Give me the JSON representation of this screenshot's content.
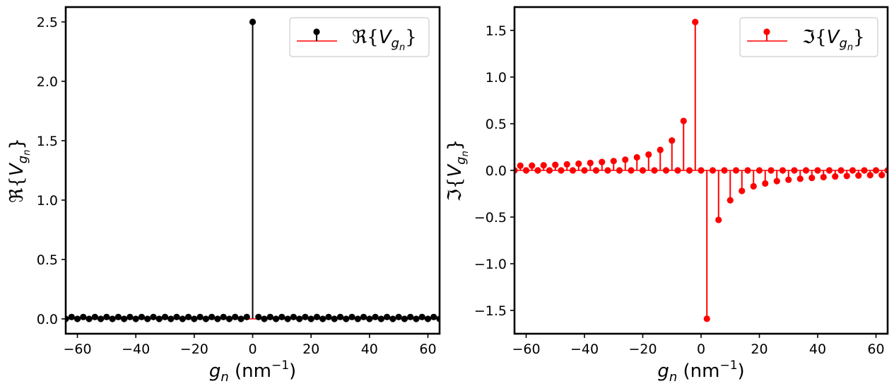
{
  "chart_data": [
    {
      "type": "stem",
      "title": "",
      "xlabel": "g_n (nm⁻¹)",
      "xlabel_main": "g",
      "xlabel_sub": "n",
      "xlabel_unit": " (nm",
      "xlabel_sup": "−1",
      "xlabel_close": ")",
      "ylabel": "ℜ{V_gn}",
      "ylabel_prefix": "ℜ{",
      "ylabel_var": "V",
      "ylabel_sub": "g",
      "ylabel_subsub": "n",
      "ylabel_suffix": "}",
      "legend": {
        "label": "ℜ{V_gn}",
        "prefix": "ℜ{",
        "var": "V",
        "sub": "g",
        "subsub": "n",
        "suffix": "}",
        "location": "top-right"
      },
      "xlim": [
        -64,
        64
      ],
      "ylim": [
        -0.125,
        2.625
      ],
      "xticks": [
        -60,
        -40,
        -20,
        0,
        20,
        40,
        60
      ],
      "xtick_labels": [
        "−60",
        "−40",
        "−20",
        "0",
        "20",
        "40",
        "60"
      ],
      "yticks": [
        0.0,
        0.5,
        1.0,
        1.5,
        2.0,
        2.5
      ],
      "ytick_labels": [
        "0.0",
        "0.5",
        "1.0",
        "1.5",
        "2.0",
        "2.5"
      ],
      "marker_color": "#000000",
      "stem_color": "#000000",
      "baseline_color": "#ff0000",
      "x": [
        -64,
        -62,
        -60,
        -58,
        -56,
        -54,
        -52,
        -50,
        -48,
        -46,
        -44,
        -42,
        -40,
        -38,
        -36,
        -34,
        -32,
        -30,
        -28,
        -26,
        -24,
        -22,
        -20,
        -18,
        -16,
        -14,
        -12,
        -10,
        -8,
        -6,
        -4,
        -2,
        0,
        2,
        4,
        6,
        8,
        10,
        12,
        14,
        16,
        18,
        20,
        22,
        24,
        26,
        28,
        30,
        32,
        34,
        36,
        38,
        40,
        42,
        44,
        46,
        48,
        50,
        52,
        54,
        56,
        58,
        60,
        62,
        64
      ],
      "y": [
        0,
        0.016,
        0,
        0.016,
        0,
        0.016,
        0,
        0.016,
        0,
        0.016,
        0,
        0.016,
        0,
        0.016,
        0,
        0.016,
        0,
        0.016,
        0,
        0.016,
        0,
        0.016,
        0,
        0.016,
        0,
        0.016,
        0,
        0.016,
        0,
        0.016,
        0,
        0.016,
        2.5,
        0.016,
        0,
        0.016,
        0,
        0.016,
        0,
        0.016,
        0,
        0.016,
        0,
        0.016,
        0,
        0.016,
        0,
        0.016,
        0,
        0.016,
        0,
        0.016,
        0,
        0.016,
        0,
        0.016,
        0,
        0.016,
        0,
        0.016,
        0,
        0.016,
        0,
        0.016,
        0
      ]
    },
    {
      "type": "stem",
      "title": "",
      "xlabel": "g_n (nm⁻¹)",
      "xlabel_main": "g",
      "xlabel_sub": "n",
      "xlabel_unit": " (nm",
      "xlabel_sup": "−1",
      "xlabel_close": ")",
      "ylabel": "ℑ{V_gn}",
      "ylabel_prefix": "ℑ{",
      "ylabel_var": "V",
      "ylabel_sub": "g",
      "ylabel_subsub": "n",
      "ylabel_suffix": "}",
      "legend": {
        "label": "ℑ{V_gn}",
        "prefix": "ℑ{",
        "var": "V",
        "sub": "g",
        "subsub": "n",
        "suffix": "}",
        "location": "top-right"
      },
      "xlim": [
        -64,
        64
      ],
      "ylim": [
        -1.75,
        1.75
      ],
      "xticks": [
        -60,
        -40,
        -20,
        0,
        20,
        40,
        60
      ],
      "xtick_labels": [
        "−60",
        "−40",
        "−20",
        "0",
        "20",
        "40",
        "60"
      ],
      "yticks": [
        -1.5,
        -1.0,
        -0.5,
        0.0,
        0.5,
        1.0,
        1.5
      ],
      "ytick_labels": [
        "−1.5",
        "−1.0",
        "−0.5",
        "0.0",
        "0.5",
        "1.0",
        "1.5"
      ],
      "marker_color": "#ff0000",
      "stem_color": "#ff0000",
      "baseline_color": "#ff0000",
      "x": [
        -64,
        -62,
        -60,
        -58,
        -56,
        -54,
        -52,
        -50,
        -48,
        -46,
        -44,
        -42,
        -40,
        -38,
        -36,
        -34,
        -32,
        -30,
        -28,
        -26,
        -24,
        -22,
        -20,
        -18,
        -16,
        -14,
        -12,
        -10,
        -8,
        -6,
        -4,
        -2,
        0,
        2,
        4,
        6,
        8,
        10,
        12,
        14,
        16,
        18,
        20,
        22,
        24,
        26,
        28,
        30,
        32,
        34,
        36,
        38,
        40,
        42,
        44,
        46,
        48,
        50,
        52,
        54,
        56,
        58,
        60,
        62,
        64
      ],
      "y": [
        0,
        0.05,
        0,
        0.051,
        0,
        0.055,
        0,
        0.06,
        0,
        0.065,
        0,
        0.072,
        0,
        0.08,
        0,
        0.09,
        0,
        0.1,
        0,
        0.115,
        0,
        0.14,
        0,
        0.17,
        0,
        0.22,
        0,
        0.32,
        0,
        0.53,
        0,
        1.59,
        0,
        -1.59,
        0,
        -0.53,
        0,
        -0.32,
        0,
        -0.22,
        0,
        -0.17,
        0,
        -0.14,
        0,
        -0.115,
        0,
        -0.1,
        0,
        -0.09,
        0,
        -0.08,
        0,
        -0.072,
        0,
        -0.065,
        0,
        -0.06,
        0,
        -0.055,
        0,
        -0.051,
        0,
        -0.05,
        0
      ]
    }
  ]
}
